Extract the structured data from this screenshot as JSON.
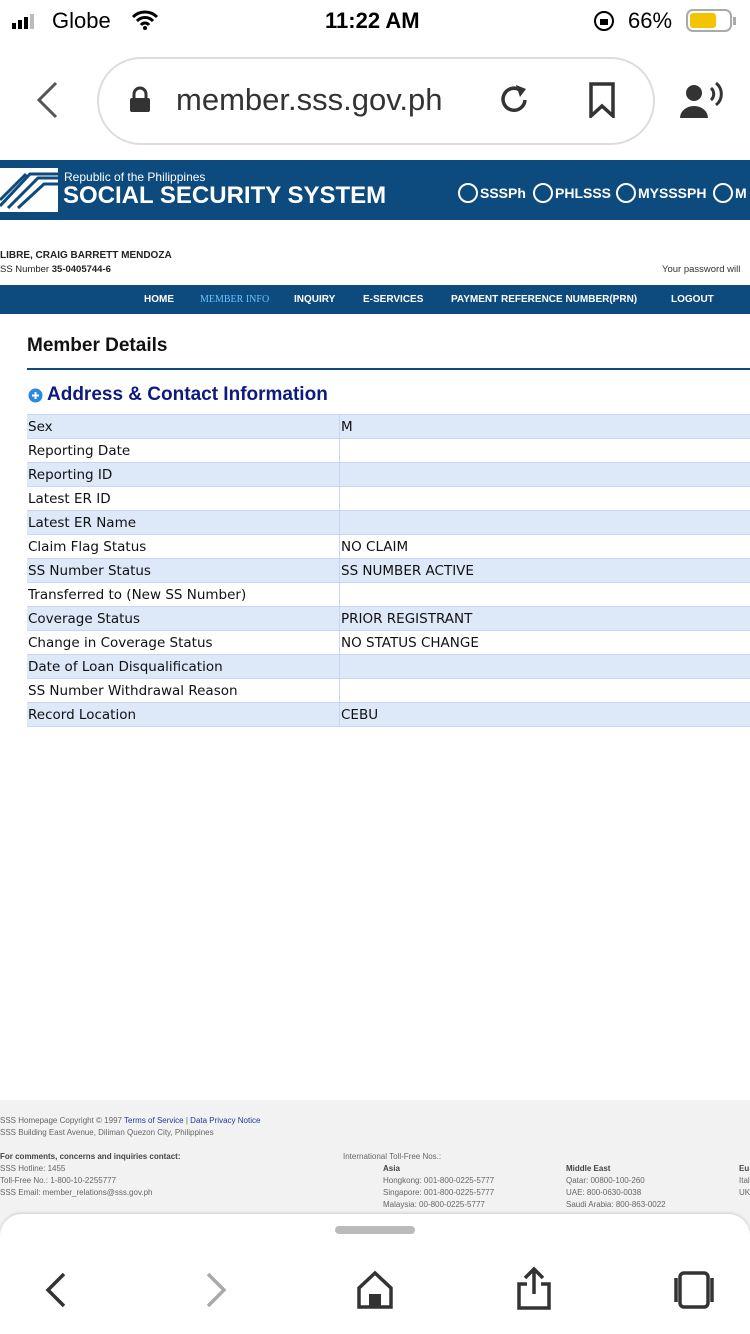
{
  "status": {
    "carrier": "Globe",
    "time": "11:22 AM",
    "battery": "66%"
  },
  "browser": {
    "url": "member.sss.gov.ph"
  },
  "header": {
    "republic": "Republic of the Philippines",
    "title": "SOCIAL SECURITY SYSTEM",
    "socials": [
      "SSSPh",
      "PHLSSS",
      "MYSSSPH",
      "M"
    ]
  },
  "member": {
    "name": "LIBRE, CRAIG BARRETT MENDOZA",
    "ss_label": "SS Number",
    "ss_number": "35-0405744-6",
    "notice": "Your password will"
  },
  "nav": [
    "HOME",
    "MEMBER INFO",
    "INQUIRY",
    "E-SERVICES",
    "PAYMENT REFERENCE NUMBER(PRN)",
    "LOGOUT"
  ],
  "page": {
    "title": "Member Details",
    "section": "Address & Contact Information"
  },
  "table": {
    "rows": [
      {
        "label": "Sex",
        "value": "M"
      },
      {
        "label": "Reporting Date"
      },
      {
        "label": "Reporting ID"
      },
      {
        "label": "Latest ER ID"
      },
      {
        "label": "Latest ER Name"
      },
      {
        "label": "Claim Flag Status",
        "value": "NO CLAIM"
      },
      {
        "label": "SS Number Status",
        "value": "SS NUMBER ACTIVE"
      },
      {
        "label": "Transferred to (New SS Number)"
      },
      {
        "label": "Coverage Status",
        "value": "PRIOR REGISTRANT"
      },
      {
        "label": "Change in Coverage Status",
        "value": "NO STATUS CHANGE"
      },
      {
        "label": "Date of Loan Disqualification"
      },
      {
        "label": "SS Number Withdrawal Reason"
      },
      {
        "label": "Record Location",
        "value": "CEBU"
      }
    ]
  },
  "footer": {
    "copyright": "SSS Homepage Copyright © 1997",
    "terms": "Terms of Service",
    "separator": "|",
    "privacy": "Data Privacy Notice",
    "address": "SSS Building East Avenue, Diliman Quezon City, Philippines",
    "contact_heading": "For comments, concerns and inquiries contact:",
    "contact_lines": [
      "SSS Hotline: 1455",
      "Toll-Free No.: 1-800-10-2255777",
      "SSS Email: member_relations@sss.gov.ph"
    ],
    "intl_heading": "International Toll-Free Nos.:",
    "regions": [
      {
        "name": "Asia",
        "lines": [
          "Hongkong: 001-800-0225-5777",
          "Singapore: 001-800-0225-5777",
          "Malaysia: 00-800-0225-5777"
        ]
      },
      {
        "name": "Middle East",
        "lines": [
          "Qatar: 00800-100-260",
          "UAE: 800-0630-0038",
          "Saudi Arabia: 800-863-0022"
        ]
      },
      {
        "name": "Eu",
        "lines": [
          "Ital",
          "UK"
        ]
      }
    ]
  }
}
